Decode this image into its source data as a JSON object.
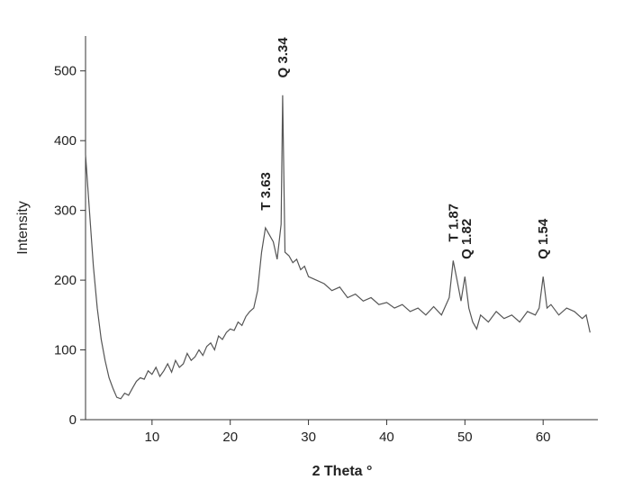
{
  "chart_data": {
    "type": "line",
    "x_label": "2 Theta °",
    "y_label": "Intensity",
    "xlim": [
      1.5,
      67
    ],
    "ylim": [
      0,
      550
    ],
    "xticks": [
      10,
      20,
      30,
      40,
      50,
      60
    ],
    "yticks": [
      0,
      100,
      200,
      300,
      400,
      500
    ],
    "x": [
      1.5,
      2,
      2.5,
      3,
      3.5,
      4,
      4.5,
      5,
      5.5,
      6,
      6.5,
      7,
      7.5,
      8,
      8.5,
      9,
      9.5,
      10,
      10.5,
      11,
      11.5,
      12,
      12.5,
      13,
      13.5,
      14,
      14.5,
      15,
      15.5,
      16,
      16.5,
      17,
      17.5,
      18,
      18.5,
      19,
      19.5,
      20,
      20.5,
      21,
      21.5,
      22,
      22.5,
      23,
      23.5,
      24,
      24.5,
      25,
      25.5,
      26,
      26.5,
      26.7,
      27,
      27.5,
      28,
      28.5,
      29,
      29.5,
      30,
      31,
      32,
      33,
      34,
      35,
      36,
      37,
      38,
      39,
      40,
      41,
      42,
      43,
      44,
      45,
      46,
      47,
      48,
      48.5,
      49,
      49.5,
      50,
      50.5,
      51,
      51.5,
      52,
      53,
      54,
      55,
      56,
      57,
      58,
      59,
      59.5,
      60,
      60.5,
      61,
      62,
      63,
      64,
      65,
      65.5,
      66
    ],
    "series": [
      {
        "name": "Intensity",
        "color": "#555555",
        "values": [
          380,
          300,
          220,
          160,
          115,
          85,
          60,
          45,
          32,
          30,
          38,
          35,
          45,
          55,
          60,
          58,
          70,
          65,
          75,
          62,
          70,
          80,
          68,
          85,
          75,
          80,
          95,
          85,
          90,
          100,
          92,
          105,
          110,
          100,
          120,
          115,
          125,
          130,
          128,
          140,
          135,
          148,
          155,
          160,
          185,
          240,
          275,
          265,
          255,
          230,
          280,
          465,
          240,
          235,
          225,
          230,
          215,
          220,
          205,
          200,
          195,
          185,
          190,
          175,
          180,
          170,
          175,
          165,
          168,
          160,
          165,
          155,
          160,
          150,
          162,
          150,
          175,
          228,
          200,
          170,
          205,
          160,
          140,
          130,
          150,
          140,
          155,
          145,
          150,
          140,
          155,
          150,
          160,
          205,
          160,
          165,
          150,
          160,
          155,
          145,
          150,
          125
        ]
      }
    ],
    "annotations": [
      {
        "text": "T 3.63",
        "x": 24.5,
        "y": 300
      },
      {
        "text": "Q 3.34",
        "x": 26.7,
        "y": 490
      },
      {
        "text": "T 1.87",
        "x": 48.5,
        "y": 255
      },
      {
        "text": "Q 1.82",
        "x": 50.2,
        "y": 230
      },
      {
        "text": "Q 1.54",
        "x": 60,
        "y": 230
      }
    ]
  }
}
